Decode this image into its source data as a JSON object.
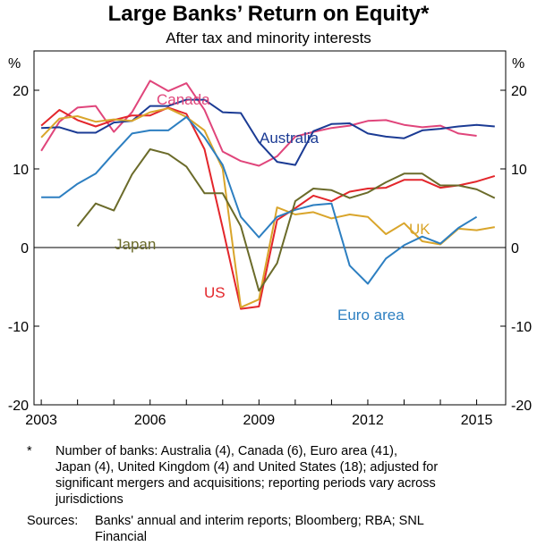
{
  "chart_data": {
    "type": "line",
    "title": "Large Banks’ Return on Equity*",
    "subtitle": "After tax and minority interests",
    "ylabel_left": "%",
    "ylabel_right": "%",
    "ylim": [
      -20,
      25
    ],
    "yticks": [
      -20,
      -10,
      0,
      10,
      20
    ],
    "xlim": [
      2002.8,
      2015.8
    ],
    "xticks": [
      2003,
      2006,
      2009,
      2012,
      2015
    ],
    "grid": false,
    "series": [
      {
        "name": "Canada",
        "label": "Canada",
        "color": "#e0457b",
        "x": [
          2003,
          2003.5,
          2004,
          2004.5,
          2005,
          2005.5,
          2006,
          2006.5,
          2007,
          2007.5,
          2008,
          2008.5,
          2009,
          2009.5,
          2010,
          2010.5,
          2011,
          2011.5,
          2012,
          2012.5,
          2013,
          2013.5,
          2014,
          2014.5,
          2015
        ],
        "values": [
          12.3,
          16.0,
          17.8,
          18.0,
          14.7,
          17.2,
          21.2,
          19.9,
          20.9,
          17.5,
          12.2,
          11.0,
          10.4,
          11.6,
          14.1,
          14.7,
          15.2,
          15.5,
          16.1,
          16.2,
          15.6,
          15.3,
          15.5,
          14.5,
          14.2
        ]
      },
      {
        "name": "Australia",
        "label": "Australia",
        "color": "#1b3b94",
        "x": [
          2003,
          2003.5,
          2004,
          2004.5,
          2005,
          2005.5,
          2006,
          2006.5,
          2007,
          2007.5,
          2008,
          2008.5,
          2009,
          2009.5,
          2010,
          2010.5,
          2011,
          2011.5,
          2012,
          2012.5,
          2013,
          2013.5,
          2014,
          2014.5,
          2015,
          2015.5
        ],
        "values": [
          15.2,
          15.3,
          14.6,
          14.6,
          15.9,
          16.1,
          18.0,
          18.0,
          18.8,
          18.8,
          17.2,
          17.1,
          13.4,
          10.9,
          10.5,
          14.8,
          15.7,
          15.8,
          14.5,
          14.1,
          13.9,
          14.9,
          15.1,
          15.4,
          15.6,
          15.4
        ]
      },
      {
        "name": "US",
        "label": "US",
        "color": "#e3262b",
        "x": [
          2003,
          2003.5,
          2004,
          2004.5,
          2005,
          2005.5,
          2006,
          2006.5,
          2007,
          2007.5,
          2008,
          2008.5,
          2009,
          2009.5,
          2010,
          2010.5,
          2011,
          2011.5,
          2012,
          2012.5,
          2013,
          2013.5,
          2014,
          2014.5,
          2015,
          2015.5
        ],
        "values": [
          15.5,
          17.5,
          16.2,
          15.4,
          16.2,
          16.8,
          16.8,
          17.8,
          17.0,
          12.5,
          2.5,
          -7.8,
          -7.5,
          3.5,
          5.0,
          6.6,
          5.9,
          7.1,
          7.5,
          7.6,
          8.6,
          8.6,
          7.6,
          7.9,
          8.4,
          9.1
        ]
      },
      {
        "name": "UK",
        "label": "UK",
        "color": "#d9a52b",
        "x": [
          2003,
          2003.5,
          2004,
          2004.5,
          2005,
          2005.5,
          2006,
          2006.5,
          2007,
          2007.5,
          2008,
          2008.5,
          2009,
          2009.5,
          2010,
          2010.5,
          2011,
          2011.5,
          2012,
          2012.5,
          2013,
          2013.5,
          2014,
          2014.5,
          2015,
          2015.5
        ],
        "values": [
          14.0,
          16.4,
          16.7,
          16.0,
          16.3,
          16.1,
          17.2,
          17.7,
          16.6,
          14.9,
          10.0,
          -7.6,
          -6.6,
          5.1,
          4.2,
          4.5,
          3.7,
          4.2,
          3.9,
          1.7,
          3.1,
          0.8,
          0.4,
          2.4,
          2.2,
          2.6
        ]
      },
      {
        "name": "Euro area",
        "label": "Euro area",
        "color": "#2d7fc1",
        "x": [
          2003,
          2003.5,
          2004,
          2004.5,
          2005,
          2005.5,
          2006,
          2006.5,
          2007,
          2007.5,
          2008,
          2008.5,
          2009,
          2009.5,
          2010,
          2010.5,
          2011,
          2011.5,
          2012,
          2012.5,
          2013,
          2013.5,
          2014,
          2014.5,
          2015
        ],
        "values": [
          6.4,
          6.4,
          8.1,
          9.4,
          12.0,
          14.5,
          14.9,
          14.9,
          16.6,
          14.0,
          10.5,
          3.9,
          1.3,
          3.9,
          4.8,
          5.4,
          5.6,
          -2.3,
          -4.6,
          -1.4,
          0.3,
          1.4,
          0.5,
          2.5,
          3.9
        ]
      },
      {
        "name": "Japan",
        "label": "Japan",
        "color": "#6b6b2a",
        "x": [
          2004,
          2004.5,
          2005,
          2005.5,
          2006,
          2006.5,
          2007,
          2007.5,
          2008,
          2008.5,
          2009,
          2009.5,
          2010,
          2010.5,
          2011,
          2011.5,
          2012,
          2012.5,
          2013,
          2013.5,
          2014,
          2014.5,
          2015,
          2015.5
        ],
        "values": [
          2.7,
          5.6,
          4.7,
          9.3,
          12.5,
          11.9,
          10.3,
          6.9,
          6.9,
          2.7,
          -5.5,
          -2.0,
          5.9,
          7.5,
          7.3,
          6.3,
          7.0,
          8.3,
          9.4,
          9.4,
          7.9,
          7.9,
          7.4,
          6.3
        ]
      }
    ]
  },
  "footnotes": {
    "note_marker": "*",
    "note_lines": [
      "Number of banks: Australia (4), Canada (6), Euro area (41),",
      "Japan (4), United Kingdom (4) and United States (18); adjusted for",
      "significant mergers and acquisitions; reporting periods vary across",
      "jurisdictions"
    ],
    "sources_marker": "Sources:",
    "sources_lines": [
      "Banks' annual and interim reports; Bloomberg; RBA; SNL",
      "Financial"
    ]
  }
}
